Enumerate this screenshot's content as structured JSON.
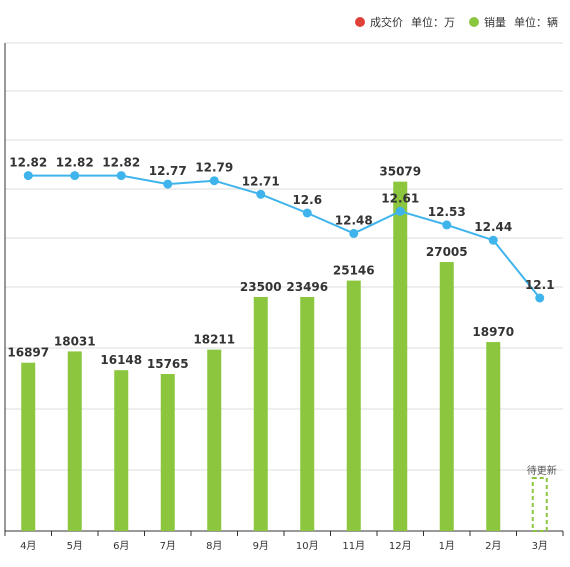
{
  "legend": {
    "price": {
      "label": "成交价",
      "unit": "单位：万",
      "color": "#e0403a"
    },
    "sales": {
      "label": "销量",
      "unit": "单位：辆",
      "color": "#8cc63f"
    }
  },
  "chart_data": {
    "type": "bar",
    "categories": [
      "4月",
      "5月",
      "6月",
      "7月",
      "8月",
      "9月",
      "10月",
      "11月",
      "12月",
      "1月",
      "2月",
      "3月"
    ],
    "series": [
      {
        "name": "成交价",
        "type": "line",
        "color": "#3fb4ec",
        "values": [
          12.82,
          12.82,
          12.82,
          12.77,
          12.79,
          12.71,
          12.6,
          12.48,
          12.61,
          12.53,
          12.44,
          12.1
        ],
        "labels": [
          "12.82",
          "12.82",
          "12.82",
          "12.77",
          "12.79",
          "12.71",
          "12.6",
          "12.48",
          "12.61",
          "12.53",
          "12.44",
          "12.1"
        ]
      },
      {
        "name": "销量",
        "type": "bar",
        "color": "#8cc63f",
        "values": [
          16897,
          18031,
          16148,
          15765,
          18211,
          23500,
          23496,
          25146,
          35079,
          27005,
          18970,
          null
        ],
        "labels": [
          "16897",
          "18031",
          "16148",
          "15765",
          "18211",
          "23500",
          "23496",
          "25146",
          "35079",
          "27005",
          "18970",
          ""
        ]
      }
    ],
    "pending_label": "待更新",
    "grid": true,
    "legend_position": "top-right"
  }
}
